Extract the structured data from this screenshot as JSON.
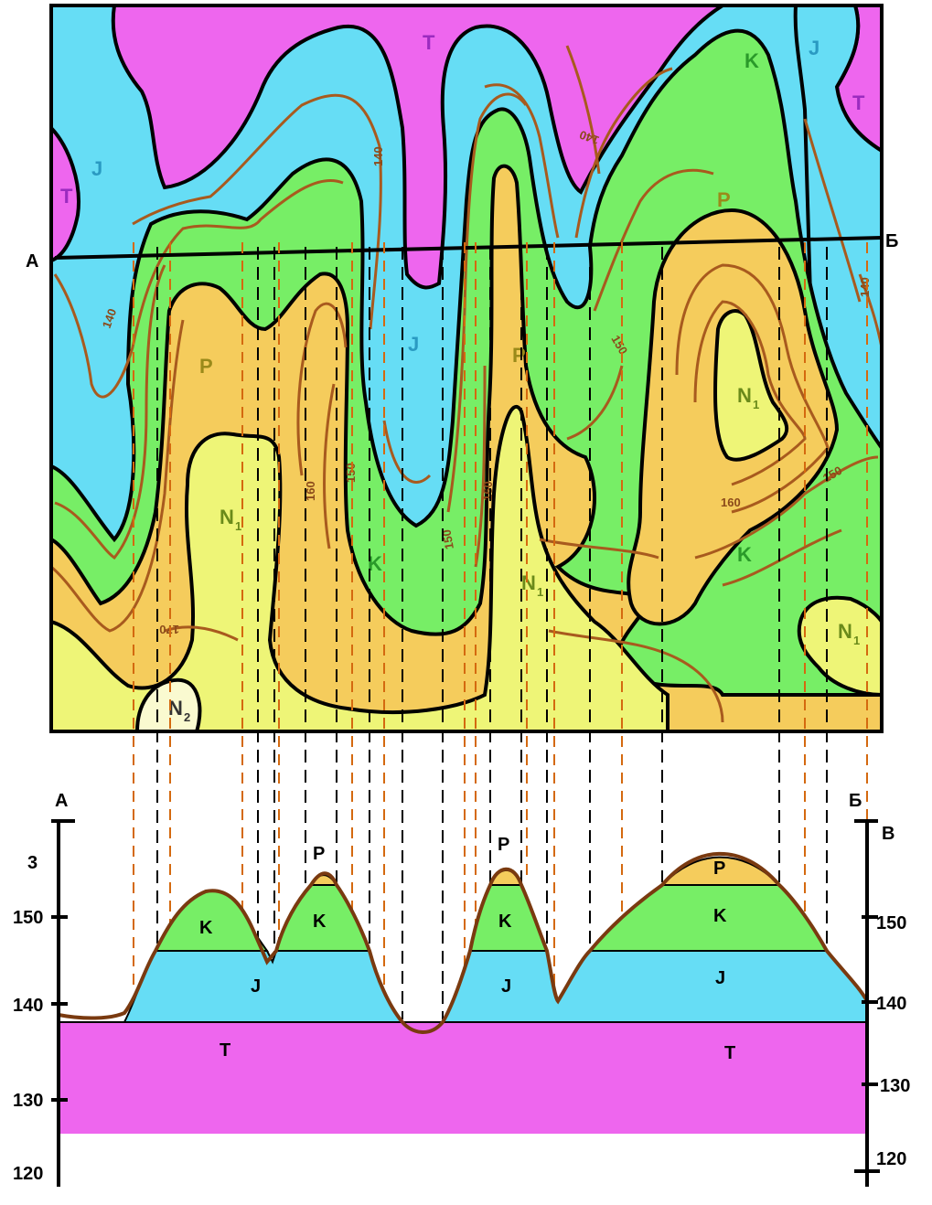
{
  "colors": {
    "T": "#ee66ee",
    "J": "#66ddf5",
    "K": "#77ee66",
    "P": "#f5cc5c",
    "N1": "#eef577",
    "N2": "#fafad0",
    "contour": "#a85a1e",
    "boundary": "#000000",
    "dropline": "#d4690f"
  },
  "map": {
    "section_start": "А",
    "section_end": "Б",
    "unit_labels": {
      "T1": "T",
      "T2": "T",
      "T3": "T",
      "J1": "J",
      "J2": "J",
      "J3": "J",
      "K1": "K",
      "K2": "K",
      "K3": "K",
      "P1": "P",
      "P2": "P",
      "P3": "P",
      "N1a": "N",
      "N1b": "N",
      "N1c": "N",
      "N1d": "N",
      "N1e": "N",
      "N2": "N"
    },
    "subscripts": {
      "one": "1",
      "two": "2"
    },
    "contour_labels": {
      "c140a": "140",
      "c140b": "140",
      "c140c": "140",
      "c140d": "140",
      "c150a": "150",
      "c150b": "150",
      "c150c": "150",
      "c150d": "150",
      "c160a": "160",
      "c160b": "160",
      "c160c": "160",
      "c170a": "170"
    }
  },
  "section": {
    "left_label": "А",
    "right_label": "Б",
    "right_label_b": "В",
    "left_scale_title": "3",
    "left_ticks": [
      "150",
      "140",
      "130",
      "120"
    ],
    "right_ticks": [
      "150",
      "140",
      "130",
      "120"
    ],
    "layer_labels": {
      "K1": "K",
      "K2": "K",
      "K3": "K",
      "K4": "K",
      "J1": "J",
      "J2": "J",
      "J3": "J",
      "T1": "T",
      "T2": "T",
      "P1": "P",
      "P2": "P",
      "P3": "P"
    }
  }
}
